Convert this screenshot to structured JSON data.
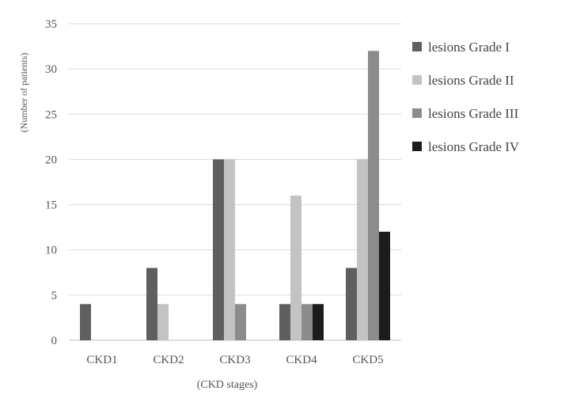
{
  "chart_data": {
    "type": "bar",
    "title": "",
    "xlabel": "(CKD stages)",
    "ylabel": "(Number of patients)",
    "categories": [
      "CKD1",
      "CKD2",
      "CKD3",
      "CKD4",
      "CKD5"
    ],
    "ylim": [
      0,
      35
    ],
    "yticks": [
      0,
      5,
      10,
      15,
      20,
      25,
      30,
      35
    ],
    "grid": true,
    "legend_position": "right",
    "series": [
      {
        "name": "lesions Grade I",
        "color": "#5f5f5f",
        "values": [
          4,
          8,
          20,
          4,
          8
        ]
      },
      {
        "name": "lesions Grade II",
        "color": "#c3c3c3",
        "values": [
          0,
          4,
          20,
          16,
          20
        ]
      },
      {
        "name": "lesions Grade III",
        "color": "#8c8c8c",
        "values": [
          0,
          0,
          4,
          4,
          32
        ]
      },
      {
        "name": "lesions Grade IV",
        "color": "#1c1c1c",
        "values": [
          0,
          0,
          0,
          4,
          12
        ]
      }
    ]
  }
}
